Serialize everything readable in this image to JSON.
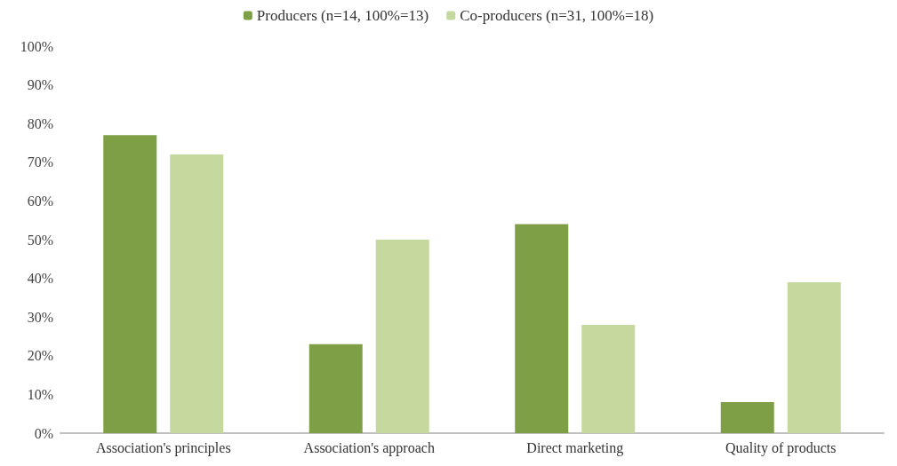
{
  "chart_data": {
    "type": "bar",
    "categories": [
      "Association's principles",
      "Association's approach",
      "Direct marketing",
      "Quality of products"
    ],
    "series": [
      {
        "name": "Producers (n=14, 100%=13)",
        "color": "#7e9f45",
        "values": [
          77,
          23,
          54,
          8
        ]
      },
      {
        "name": "Co-producers (n=31, 100%=18)",
        "color": "#c5d99e",
        "values": [
          72,
          50,
          28,
          39
        ]
      }
    ],
    "ylim": [
      0,
      100
    ],
    "yticks": [
      {
        "value": 0,
        "label": "0%"
      },
      {
        "value": 10,
        "label": "10%"
      },
      {
        "value": 20,
        "label": "20%"
      },
      {
        "value": 30,
        "label": "30%"
      },
      {
        "value": 40,
        "label": "40%"
      },
      {
        "value": 50,
        "label": "50%"
      },
      {
        "value": 60,
        "label": "60%"
      },
      {
        "value": 70,
        "label": "70%"
      },
      {
        "value": 80,
        "label": "80%"
      },
      {
        "value": 90,
        "label": "90%"
      },
      {
        "value": 100,
        "label": "100%"
      }
    ],
    "grid": false,
    "legend": "top"
  }
}
